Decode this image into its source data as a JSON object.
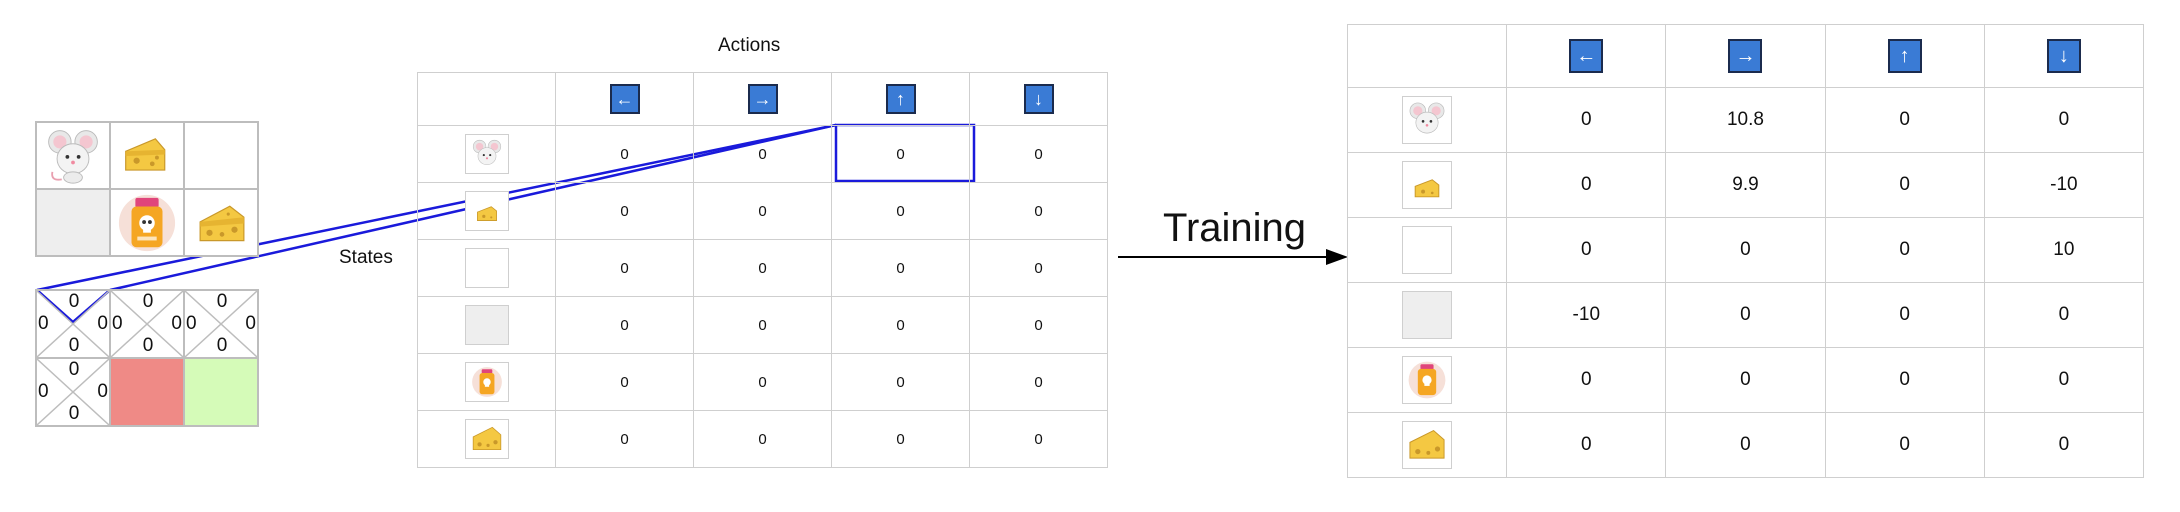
{
  "labels": {
    "actions": "Actions",
    "states": "States",
    "training": "Training"
  },
  "grid_world": {
    "cells": [
      "mouse",
      "cheese-small",
      "empty",
      "empty-grey",
      "poison",
      "cheese-big"
    ]
  },
  "q_grid": {
    "cells": [
      {
        "top": "0",
        "left": "0",
        "right": "0",
        "bottom": "0"
      },
      {
        "top": "0",
        "left": "0",
        "right": "0",
        "bottom": "0"
      },
      {
        "top": "0",
        "left": "0",
        "right": "0",
        "bottom": "0"
      },
      {
        "top": "0",
        "left": "0",
        "right": "0",
        "bottom": "0"
      }
    ],
    "poison_color": "#ef8a86",
    "goal_color": "#d5fbb8"
  },
  "actions": [
    {
      "glyph": "←",
      "icon": "arrow-left-icon"
    },
    {
      "glyph": "→",
      "icon": "arrow-right-icon"
    },
    {
      "glyph": "↑",
      "icon": "arrow-up-icon"
    },
    {
      "glyph": "↓",
      "icon": "arrow-down-icon"
    }
  ],
  "states": [
    "mouse-icon",
    "cheese-small-icon",
    "empty-cell-icon",
    "grey-cell-icon",
    "poison-icon",
    "cheese-big-icon"
  ],
  "q_table_initial": [
    [
      "0",
      "0",
      "0",
      "0"
    ],
    [
      "0",
      "0",
      "0",
      "0"
    ],
    [
      "0",
      "0",
      "0",
      "0"
    ],
    [
      "0",
      "0",
      "0",
      "0"
    ],
    [
      "0",
      "0",
      "0",
      "0"
    ],
    [
      "0",
      "0",
      "0",
      "0"
    ]
  ],
  "q_table_trained": [
    [
      "0",
      "10.8",
      "0",
      "0"
    ],
    [
      "0",
      "9.9",
      "0",
      "-10"
    ],
    [
      "0",
      "0",
      "0",
      "10"
    ],
    [
      "-10",
      "0",
      "0",
      "0"
    ],
    [
      "0",
      "0",
      "0",
      "0"
    ],
    [
      "0",
      "0",
      "0",
      "0"
    ]
  ],
  "colors": {
    "action_button": "#3a7bd5",
    "highlight": "#1a1adb"
  }
}
